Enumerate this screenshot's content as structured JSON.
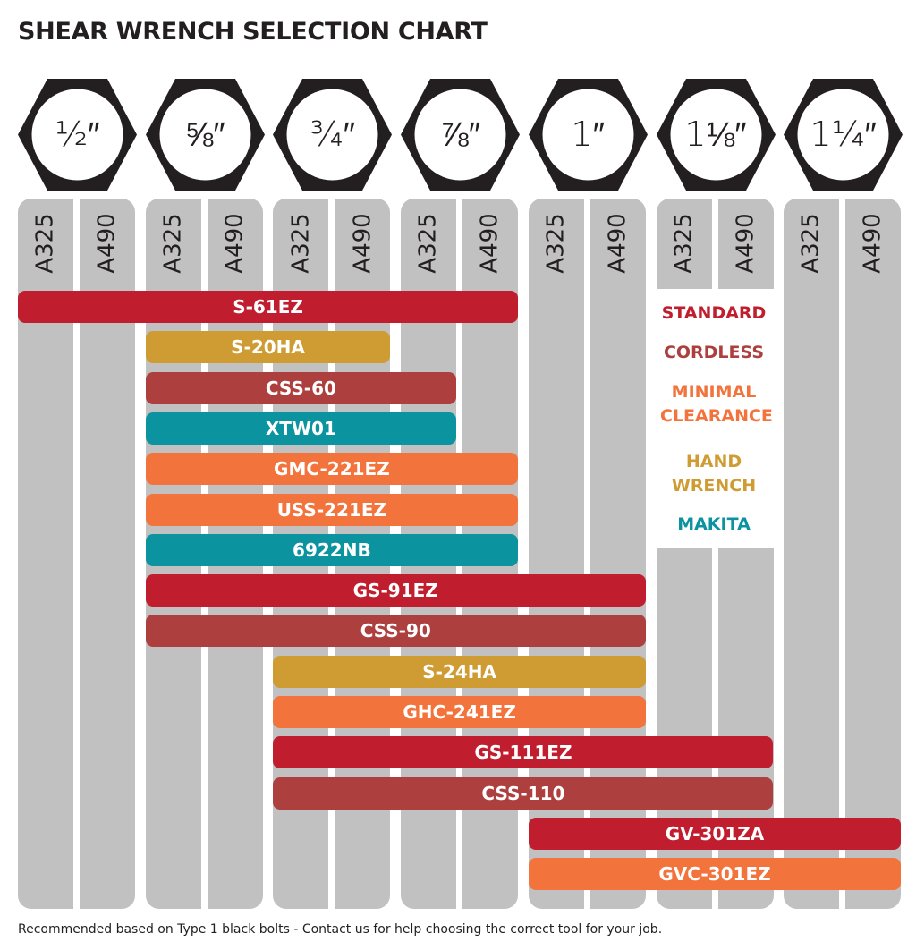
{
  "chart_data": {
    "type": "table",
    "title": "SHEAR WRENCH SELECTION CHART",
    "sizes": [
      "½″",
      "⅝″",
      "¾″",
      "⅞″",
      "1″",
      "1⅛″",
      "1¼″"
    ],
    "grades": [
      "A325",
      "A490"
    ],
    "legend": [
      {
        "key": "standard",
        "label": "STANDARD",
        "color": "#c01e2e"
      },
      {
        "key": "cordless",
        "label": "CORDLESS",
        "color": "#ad403e"
      },
      {
        "key": "minimal",
        "label": "MINIMAL CLEARANCE",
        "color": "#f2743c"
      },
      {
        "key": "hand",
        "label": "HAND WRENCH",
        "color": "#cf9c34"
      },
      {
        "key": "makita",
        "label": "MAKITA",
        "color": "#0b94a0"
      }
    ],
    "tools": [
      {
        "name": "S-61EZ",
        "type": "standard",
        "from": "½″ A325",
        "to": "⅞″ A490"
      },
      {
        "name": "S-20HA",
        "type": "hand",
        "from": "⅝″ A325",
        "to": "¾″ A490"
      },
      {
        "name": "CSS-60",
        "type": "cordless",
        "from": "⅝″ A325",
        "to": "⅞″ A325"
      },
      {
        "name": "XTW01",
        "type": "makita",
        "from": "⅝″ A325",
        "to": "⅞″ A325"
      },
      {
        "name": "GMC-221EZ",
        "type": "minimal",
        "from": "⅝″ A325",
        "to": "⅞″ A490"
      },
      {
        "name": "USS-221EZ",
        "type": "minimal",
        "from": "⅝″ A325",
        "to": "⅞″ A490"
      },
      {
        "name": "6922NB",
        "type": "makita",
        "from": "⅝″ A325",
        "to": "⅞″ A490"
      },
      {
        "name": "GS-91EZ",
        "type": "standard",
        "from": "⅝″ A325",
        "to": "1″ A490"
      },
      {
        "name": "CSS-90",
        "type": "cordless",
        "from": "⅝″ A325",
        "to": "1″ A490"
      },
      {
        "name": "S-24HA",
        "type": "hand",
        "from": "¾″ A325",
        "to": "1″ A490"
      },
      {
        "name": "GHC-241EZ",
        "type": "minimal",
        "from": "¾″ A325",
        "to": "1″ A490"
      },
      {
        "name": "GS-111EZ",
        "type": "standard",
        "from": "¾″ A325",
        "to": "1⅛″ A490"
      },
      {
        "name": "CSS-110",
        "type": "cordless",
        "from": "¾″ A325",
        "to": "1⅛″ A490"
      },
      {
        "name": "GV-301ZA",
        "type": "standard",
        "from": "1″ A325",
        "to": "1¼″ A490"
      },
      {
        "name": "GVC-301EZ",
        "type": "minimal",
        "from": "1″ A325",
        "to": "1¼″ A490"
      }
    ],
    "footnote": "Recommended based on Type 1 black bolts - Contact us for help choosing the correct tool for your job."
  }
}
